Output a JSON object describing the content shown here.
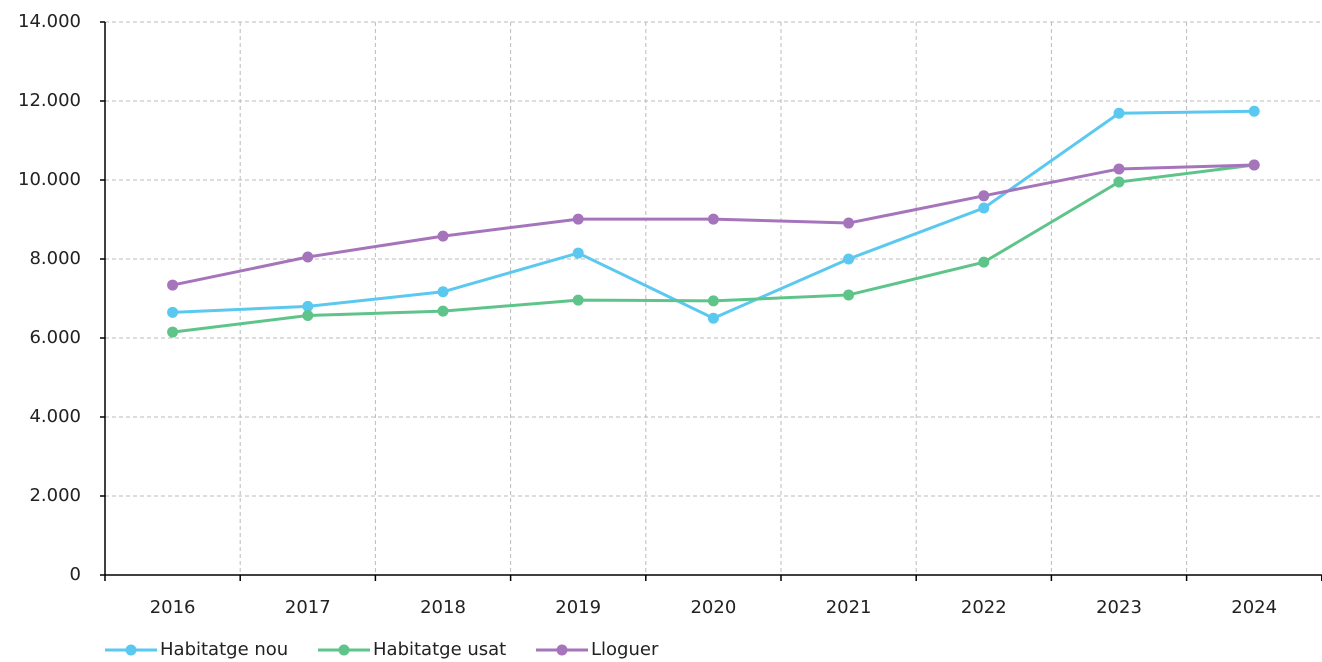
{
  "chart_data": {
    "type": "line",
    "categories": [
      "2016",
      "2017",
      "2018",
      "2019",
      "2020",
      "2021",
      "2022",
      "2023",
      "2024"
    ],
    "series": [
      {
        "name": "Habitatge nou",
        "color": "#5bc8f0",
        "values": [
          6650,
          6800,
          7170,
          8150,
          6500,
          8000,
          9290,
          11690,
          11740
        ]
      },
      {
        "name": "Habitatge usat",
        "color": "#5ec48a",
        "values": [
          6150,
          6570,
          6680,
          6960,
          6940,
          7090,
          7920,
          9950,
          10380
        ]
      },
      {
        "name": "Lloguer",
        "color": "#a674bb",
        "values": [
          7340,
          8050,
          8580,
          9010,
          9010,
          8910,
          9600,
          10280,
          10380
        ]
      }
    ],
    "ylim": [
      0,
      14000
    ],
    "yticks": [
      0,
      {
        "value": 2000,
        "label": "2.000"
      },
      {
        "value": 4000,
        "label": "4.000"
      },
      {
        "value": 6000,
        "label": "6.000"
      },
      {
        "value": 8000,
        "label": "8.000"
      },
      {
        "value": 10000,
        "label": "10.000"
      },
      {
        "value": 12000,
        "label": "12.000"
      },
      {
        "value": 14000,
        "label": "14.000"
      }
    ],
    "grid": true,
    "legend": "bottom"
  }
}
